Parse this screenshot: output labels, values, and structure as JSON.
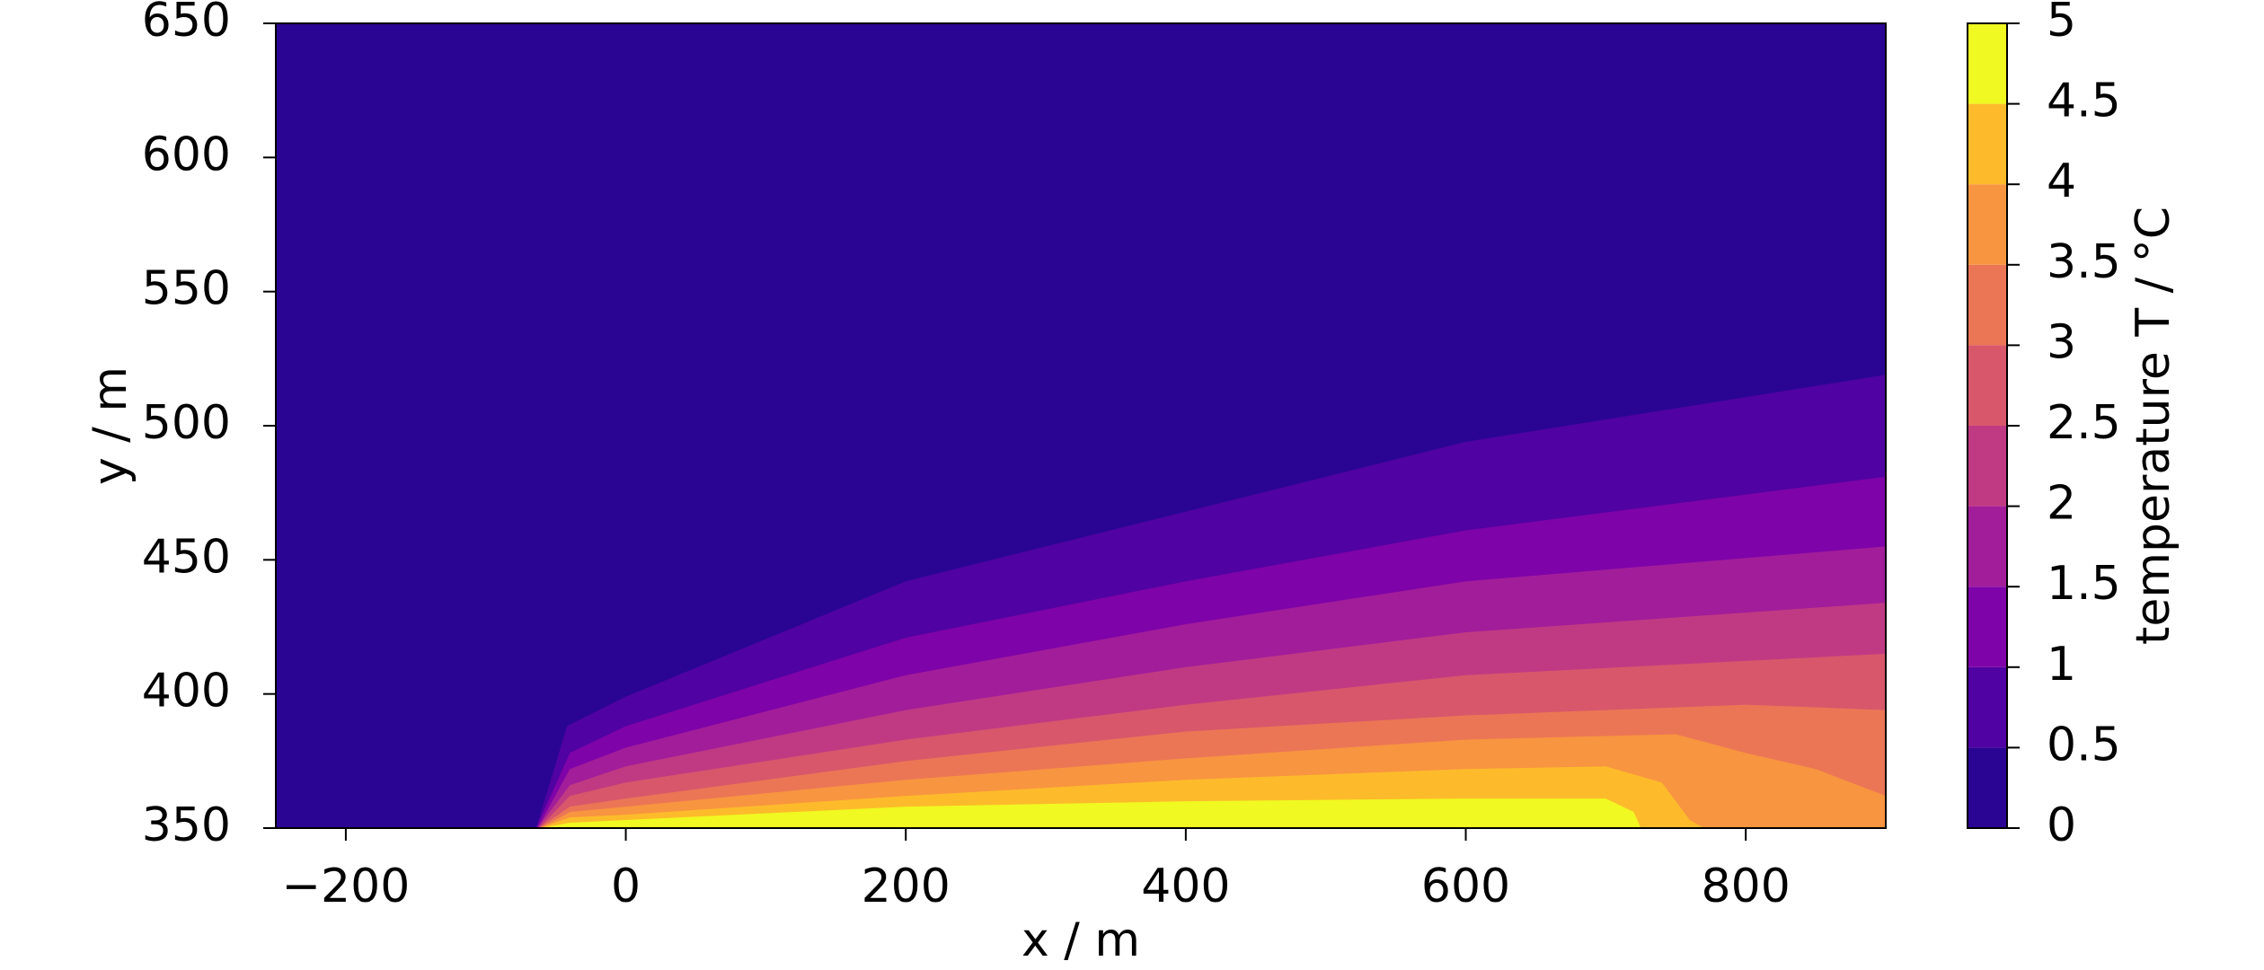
{
  "chart_data": {
    "type": "contourf",
    "xlabel": "x / m",
    "ylabel": "y / m",
    "xlim": [
      -250,
      900
    ],
    "ylim": [
      350,
      650
    ],
    "xticks": [
      {
        "value": -200,
        "label": "−200"
      },
      0,
      200,
      400,
      600,
      800
    ],
    "yticks": [
      350,
      400,
      450,
      500,
      550,
      600,
      650
    ],
    "colorbar": {
      "label": "temperature T / °C",
      "levels": [
        0,
        0.5,
        1,
        1.5,
        2,
        2.5,
        3,
        3.5,
        4,
        4.5,
        5
      ],
      "colors": [
        "#2a0593",
        "#5002a2",
        "#7e03a8",
        "#a21d9a",
        "#c03a83",
        "#d8576b",
        "#eb7655",
        "#f89540",
        "#fdbb2b",
        "#f0f921"
      ]
    },
    "contours": [
      {
        "x": [
          -64,
          -42,
          0,
          200,
          400,
          600,
          900
        ],
        "y": [
          350,
          388,
          399,
          442,
          468,
          494,
          519
        ]
      },
      {
        "x": [
          -64,
          -40,
          0,
          200,
          400,
          600,
          900
        ],
        "y": [
          350,
          378,
          388,
          421,
          442,
          461,
          481
        ]
      },
      {
        "x": [
          -63,
          -40,
          0,
          200,
          400,
          600,
          900
        ],
        "y": [
          350,
          372,
          380,
          407,
          426,
          442,
          455
        ]
      },
      {
        "x": [
          -63,
          -40,
          0,
          200,
          400,
          600,
          900
        ],
        "y": [
          350,
          366,
          373,
          394,
          410,
          423,
          434
        ]
      },
      {
        "x": [
          -62,
          -40,
          0,
          200,
          400,
          600,
          900
        ],
        "y": [
          350,
          362,
          367,
          383,
          396,
          407,
          415
        ]
      },
      {
        "x": [
          -62,
          -40,
          0,
          200,
          400,
          600,
          800,
          900
        ],
        "y": [
          350,
          358,
          361,
          375,
          386,
          392,
          396,
          394
        ]
      },
      {
        "x": [
          -61,
          -40,
          0,
          200,
          400,
          600,
          750,
          800,
          850,
          900
        ],
        "y": [
          350,
          356,
          358,
          368,
          376,
          383,
          385,
          378,
          372,
          362
        ]
      },
      {
        "x": [
          -61,
          -40,
          0,
          200,
          400,
          600,
          700,
          740,
          760,
          770
        ],
        "y": [
          350,
          354,
          355,
          362,
          368,
          372,
          373,
          367,
          353,
          350
        ]
      },
      {
        "x": [
          -60,
          -40,
          0,
          200,
          400,
          600,
          700,
          720,
          725
        ],
        "y": [
          350,
          352,
          353,
          358,
          360,
          361,
          361,
          356,
          350
        ]
      }
    ]
  }
}
